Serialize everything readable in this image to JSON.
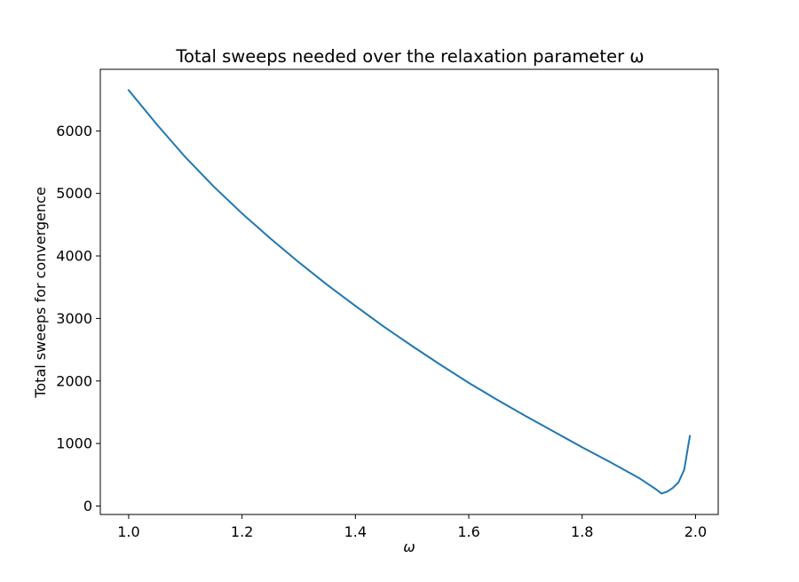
{
  "chart_data": {
    "type": "line",
    "title": "Total sweeps needed over the relaxation parameter ω",
    "xlabel": "ω",
    "ylabel": "Total sweeps for convergence",
    "xlim": [
      0.95,
      2.04
    ],
    "ylim": [
      -135,
      6985
    ],
    "xticks": [
      1.0,
      1.2,
      1.4,
      1.6,
      1.8,
      2.0
    ],
    "xtick_labels": [
      "1.0",
      "1.2",
      "1.4",
      "1.6",
      "1.8",
      "2.0"
    ],
    "yticks": [
      0,
      1000,
      2000,
      3000,
      4000,
      5000,
      6000
    ],
    "ytick_labels": [
      "0",
      "1000",
      "2000",
      "3000",
      "4000",
      "5000",
      "6000"
    ],
    "grid": false,
    "series": [
      {
        "color": "#1f77b4",
        "x": [
          1.0,
          1.05,
          1.1,
          1.15,
          1.2,
          1.25,
          1.3,
          1.35,
          1.4,
          1.45,
          1.5,
          1.55,
          1.6,
          1.65,
          1.7,
          1.75,
          1.8,
          1.85,
          1.9,
          1.92,
          1.93,
          1.94,
          1.95,
          1.96,
          1.97,
          1.98,
          1.99
        ],
        "y": [
          6650,
          6100,
          5580,
          5110,
          4680,
          4280,
          3900,
          3540,
          3200,
          2870,
          2560,
          2260,
          1970,
          1700,
          1440,
          1190,
          940,
          700,
          450,
          330,
          270,
          200,
          230,
          290,
          380,
          580,
          1120
        ]
      }
    ]
  }
}
